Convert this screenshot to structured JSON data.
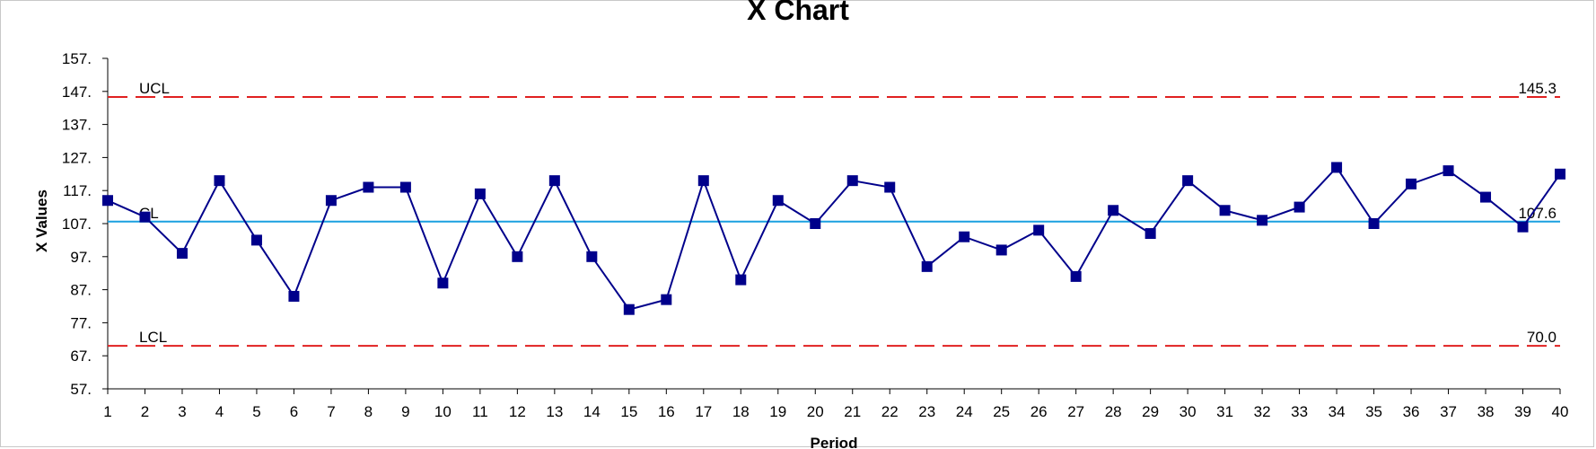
{
  "chart_data": {
    "type": "line",
    "title": "X Chart",
    "xlabel": "Period",
    "ylabel": "X Values",
    "ylim": [
      57,
      157
    ],
    "yticks": [
      57,
      67,
      77,
      87,
      97,
      107,
      117,
      127,
      137,
      147,
      157
    ],
    "ytick_labels": [
      "57.",
      "67.",
      "77.",
      "87.",
      "97.",
      "107.",
      "117.",
      "127.",
      "137.",
      "147.",
      "157."
    ],
    "xlim": [
      1,
      40
    ],
    "x": [
      1,
      2,
      3,
      4,
      5,
      6,
      7,
      8,
      9,
      10,
      11,
      12,
      13,
      14,
      15,
      16,
      17,
      18,
      19,
      20,
      21,
      22,
      23,
      24,
      25,
      26,
      27,
      28,
      29,
      30,
      31,
      32,
      33,
      34,
      35,
      36,
      37,
      38,
      39,
      40
    ],
    "series": [
      {
        "values": [
          114,
          109,
          98,
          120,
          102,
          85,
          114,
          118,
          118,
          89,
          116,
          97,
          120,
          97,
          81,
          84,
          120,
          90,
          114,
          107,
          120,
          118,
          94,
          103,
          99,
          105,
          91,
          111,
          104,
          120,
          111,
          108,
          112,
          124,
          107,
          119,
          123,
          115,
          106,
          122
        ],
        "color": "#00008b",
        "marker": "square"
      }
    ],
    "control_lines": [
      {
        "label": "UCL",
        "value_label": "145.3",
        "value": 145.3,
        "color": "#e02020",
        "style": "dashed"
      },
      {
        "label": "CL",
        "value_label": "107.6",
        "value": 107.6,
        "color": "#1aa0e0",
        "style": "solid"
      },
      {
        "label": "LCL",
        "value_label": "70.0",
        "value": 70.0,
        "color": "#e02020",
        "style": "dashed"
      }
    ],
    "grid": false,
    "legend": "none"
  }
}
